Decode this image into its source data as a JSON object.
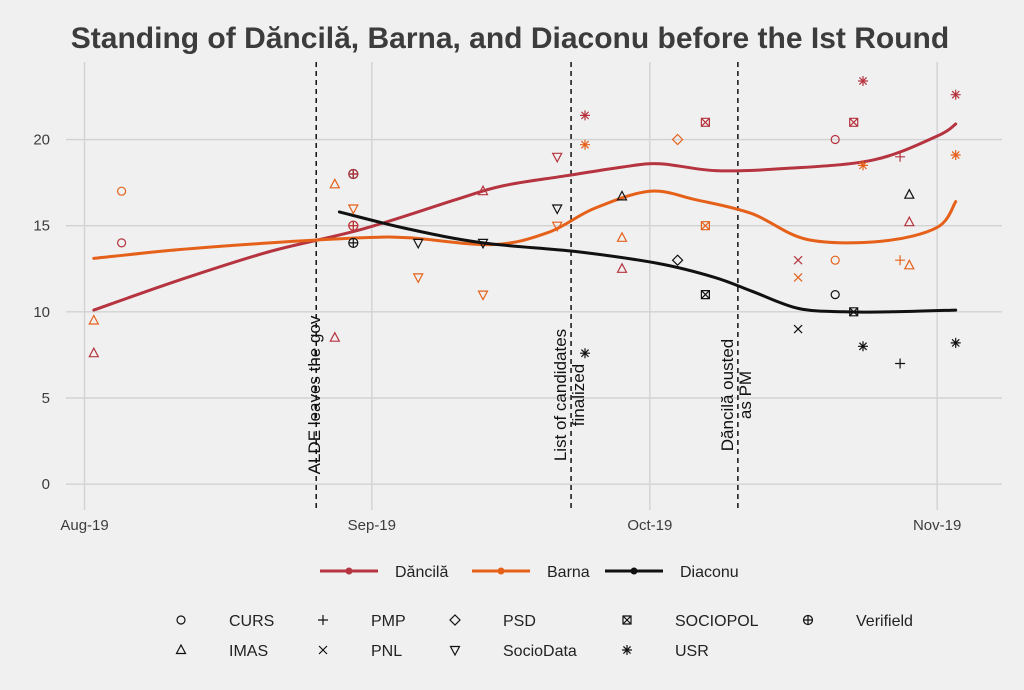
{
  "chart_data": {
    "type": "scatter",
    "title": "Standing of Dăncilă, Barna, and Diaconu before the Ist Round",
    "xlabel": "",
    "ylabel": "",
    "x_range_days": [
      -2,
      99
    ],
    "ylim": [
      -1.5,
      24.5
    ],
    "x_ticks": [
      {
        "day": 0,
        "label": "Aug-19"
      },
      {
        "day": 31,
        "label": "Sep-19"
      },
      {
        "day": 61,
        "label": "Oct-19"
      },
      {
        "day": 92,
        "label": "Nov-19"
      }
    ],
    "y_ticks": [
      0,
      5,
      10,
      15,
      20
    ],
    "colors": {
      "Dancila": "#b5343f",
      "Barna": "#e5611a",
      "Diaconu": "#111111"
    },
    "candidates": [
      {
        "key": "Dancila",
        "name": "Dăncilă"
      },
      {
        "key": "Barna",
        "name": "Barna"
      },
      {
        "key": "Diaconu",
        "name": "Diaconu"
      }
    ],
    "pollsters": [
      {
        "name": "CURS",
        "symbol": "circle"
      },
      {
        "name": "PMP",
        "symbol": "plus"
      },
      {
        "name": "PSD",
        "symbol": "diamond"
      },
      {
        "name": "SOCIOPOL",
        "symbol": "boxx"
      },
      {
        "name": "Verifield",
        "symbol": "circleplus"
      },
      {
        "name": "IMAS",
        "symbol": "triangle"
      },
      {
        "name": "PNL",
        "symbol": "x"
      },
      {
        "name": "SocioData",
        "symbol": "triangledown"
      },
      {
        "name": "USR",
        "symbol": "asterisk"
      }
    ],
    "annotations": [
      {
        "day": 25,
        "lines": [
          "ALDE leaves the gov"
        ]
      },
      {
        "day": 52.5,
        "lines": [
          "List of candidates",
          "finalized"
        ]
      },
      {
        "day": 70.5,
        "lines": [
          "Dăncilă ousted",
          "as PM"
        ]
      }
    ],
    "smooth_lines": [
      {
        "candidate": "Dancila",
        "points": [
          [
            1,
            10.1
          ],
          [
            10,
            11.8
          ],
          [
            20,
            13.5
          ],
          [
            30,
            14.8
          ],
          [
            40,
            16.5
          ],
          [
            45,
            17.3
          ],
          [
            52,
            17.9
          ],
          [
            58,
            18.4
          ],
          [
            62,
            18.6
          ],
          [
            68,
            18.2
          ],
          [
            75,
            18.3
          ],
          [
            85,
            18.8
          ],
          [
            92,
            20.2
          ],
          [
            94,
            20.9
          ]
        ]
      },
      {
        "candidate": "Barna",
        "points": [
          [
            1,
            13.1
          ],
          [
            10,
            13.6
          ],
          [
            20,
            14.0
          ],
          [
            30,
            14.3
          ],
          [
            35,
            14.3
          ],
          [
            44,
            13.9
          ],
          [
            50,
            14.6
          ],
          [
            55,
            16.0
          ],
          [
            61,
            17.0
          ],
          [
            66,
            16.5
          ],
          [
            72,
            15.7
          ],
          [
            78,
            14.2
          ],
          [
            86,
            14.1
          ],
          [
            92,
            14.9
          ],
          [
            94,
            16.4
          ]
        ]
      },
      {
        "candidate": "Diaconu",
        "points": [
          [
            27.5,
            15.8
          ],
          [
            35,
            14.8
          ],
          [
            43,
            14.0
          ],
          [
            53,
            13.5
          ],
          [
            62,
            12.8
          ],
          [
            68,
            12.0
          ],
          [
            72,
            11.2
          ],
          [
            77,
            10.2
          ],
          [
            82,
            10.0
          ],
          [
            87,
            10.0
          ],
          [
            94,
            10.1
          ]
        ]
      }
    ],
    "points": [
      {
        "candidate": "Barna",
        "pollster": "IMAS",
        "day": 1,
        "value": 9.5
      },
      {
        "candidate": "Dancila",
        "pollster": "IMAS",
        "day": 1,
        "value": 7.6
      },
      {
        "candidate": "Barna",
        "pollster": "CURS",
        "day": 4,
        "value": 17.0
      },
      {
        "candidate": "Dancila",
        "pollster": "CURS",
        "day": 4,
        "value": 14.0
      },
      {
        "candidate": "Barna",
        "pollster": "IMAS",
        "day": 27,
        "value": 17.4
      },
      {
        "candidate": "Dancila",
        "pollster": "IMAS",
        "day": 27,
        "value": 8.5
      },
      {
        "candidate": "Diaconu",
        "pollster": "Verifield",
        "day": 29,
        "value": 18.0
      },
      {
        "candidate": "Dancila",
        "pollster": "Verifield",
        "day": 29,
        "value": 18.0
      },
      {
        "candidate": "Barna",
        "pollster": "Verifield",
        "day": 29,
        "value": 15.0
      },
      {
        "candidate": "Dancila",
        "pollster": "Verifield",
        "day": 29,
        "value": 15.0
      },
      {
        "candidate": "Diaconu",
        "pollster": "Verifield",
        "day": 29,
        "value": 14.0
      },
      {
        "candidate": "Barna",
        "pollster": "SocioData",
        "day": 29,
        "value": 16.0
      },
      {
        "candidate": "Diaconu",
        "pollster": "SocioData",
        "day": 36,
        "value": 14.0
      },
      {
        "candidate": "Barna",
        "pollster": "SocioData",
        "day": 36,
        "value": 12.0
      },
      {
        "candidate": "Diaconu",
        "pollster": "SocioData",
        "day": 43,
        "value": 14.0
      },
      {
        "candidate": "Dancila",
        "pollster": "IMAS",
        "day": 43,
        "value": 17.0
      },
      {
        "candidate": "Barna",
        "pollster": "SocioData",
        "day": 43,
        "value": 11.0
      },
      {
        "candidate": "Diaconu",
        "pollster": "SocioData",
        "day": 51,
        "value": 16.0
      },
      {
        "candidate": "Dancila",
        "pollster": "SocioData",
        "day": 51,
        "value": 19.0
      },
      {
        "candidate": "Barna",
        "pollster": "SocioData",
        "day": 51,
        "value": 15.0
      },
      {
        "candidate": "Dancila",
        "pollster": "USR",
        "day": 54,
        "value": 21.4
      },
      {
        "candidate": "Barna",
        "pollster": "USR",
        "day": 54,
        "value": 19.7
      },
      {
        "candidate": "Diaconu",
        "pollster": "USR",
        "day": 54,
        "value": 7.6
      },
      {
        "candidate": "Diaconu",
        "pollster": "IMAS",
        "day": 58,
        "value": 16.7
      },
      {
        "candidate": "Barna",
        "pollster": "IMAS",
        "day": 58,
        "value": 14.3
      },
      {
        "candidate": "Dancila",
        "pollster": "IMAS",
        "day": 58,
        "value": 12.5
      },
      {
        "candidate": "Barna",
        "pollster": "PSD",
        "day": 64,
        "value": 20.0
      },
      {
        "candidate": "Diaconu",
        "pollster": "PSD",
        "day": 64,
        "value": 13.0
      },
      {
        "candidate": "Dancila",
        "pollster": "SOCIOPOL",
        "day": 67,
        "value": 21.0
      },
      {
        "candidate": "Barna",
        "pollster": "SOCIOPOL",
        "day": 67,
        "value": 15.0
      },
      {
        "candidate": "Diaconu",
        "pollster": "SOCIOPOL",
        "day": 67,
        "value": 11.0
      },
      {
        "candidate": "Dancila",
        "pollster": "PNL",
        "day": 77,
        "value": 13.0
      },
      {
        "candidate": "Barna",
        "pollster": "PNL",
        "day": 77,
        "value": 12.0
      },
      {
        "candidate": "Diaconu",
        "pollster": "PNL",
        "day": 77,
        "value": 9.0
      },
      {
        "candidate": "Dancila",
        "pollster": "CURS",
        "day": 81,
        "value": 20.0
      },
      {
        "candidate": "Barna",
        "pollster": "CURS",
        "day": 81,
        "value": 13.0
      },
      {
        "candidate": "Diaconu",
        "pollster": "CURS",
        "day": 81,
        "value": 11.0
      },
      {
        "candidate": "Dancila",
        "pollster": "SOCIOPOL",
        "day": 83,
        "value": 21.0
      },
      {
        "candidate": "Diaconu",
        "pollster": "SOCIOPOL",
        "day": 83,
        "value": 10.0
      },
      {
        "candidate": "Dancila",
        "pollster": "USR",
        "day": 84,
        "value": 23.4
      },
      {
        "candidate": "Barna",
        "pollster": "USR",
        "day": 84,
        "value": 18.5
      },
      {
        "candidate": "Diaconu",
        "pollster": "USR",
        "day": 84,
        "value": 8.0
      },
      {
        "candidate": "Dancila",
        "pollster": "PMP",
        "day": 88,
        "value": 19.0
      },
      {
        "candidate": "Barna",
        "pollster": "PMP",
        "day": 88,
        "value": 13.0
      },
      {
        "candidate": "Diaconu",
        "pollster": "PMP",
        "day": 88,
        "value": 7.0
      },
      {
        "candidate": "Diaconu",
        "pollster": "IMAS",
        "day": 89,
        "value": 16.8
      },
      {
        "candidate": "Dancila",
        "pollster": "IMAS",
        "day": 89,
        "value": 15.2
      },
      {
        "candidate": "Barna",
        "pollster": "IMAS",
        "day": 89,
        "value": 12.7
      },
      {
        "candidate": "Dancila",
        "pollster": "USR",
        "day": 94,
        "value": 22.6
      },
      {
        "candidate": "Barna",
        "pollster": "USR",
        "day": 94,
        "value": 19.1
      },
      {
        "candidate": "Diaconu",
        "pollster": "USR",
        "day": 94,
        "value": 8.2
      }
    ]
  }
}
